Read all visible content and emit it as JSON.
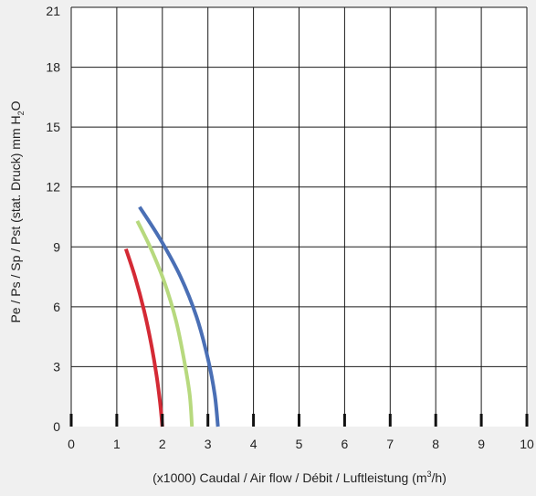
{
  "chart_data": {
    "type": "line",
    "xlabel_main": "(x1000) Caudal / Air flow / Débit / Luftleistung (m",
    "xlabel_sup": "3",
    "xlabel_end": "/h)",
    "ylabel_main": "Pe / Ps / Sp / Pst (stat. Druck) mm H",
    "ylabel_sub": "2",
    "ylabel_end": "O",
    "xlim": [
      0,
      10
    ],
    "ylim": [
      0,
      21
    ],
    "x_ticks": [
      "0",
      "1",
      "2",
      "3",
      "4",
      "5",
      "6",
      "7",
      "8",
      "9",
      "10"
    ],
    "y_ticks": [
      "0",
      "3",
      "6",
      "9",
      "12",
      "15",
      "18",
      "21"
    ],
    "grid": true,
    "series": [
      {
        "color": "#d42a35",
        "x": [
          1.2,
          1.4,
          1.6,
          1.75,
          1.87,
          1.95,
          2.0
        ],
        "y": [
          8.9,
          7.5,
          5.8,
          4.2,
          2.6,
          1.2,
          0.0
        ]
      },
      {
        "color": "#b7d97e",
        "x": [
          1.45,
          1.75,
          2.05,
          2.3,
          2.48,
          2.6,
          2.65
        ],
        "y": [
          10.3,
          8.9,
          7.2,
          5.3,
          3.3,
          1.6,
          0.0
        ]
      },
      {
        "color": "#4a6fb5",
        "x": [
          1.5,
          1.95,
          2.4,
          2.75,
          3.0,
          3.15,
          3.22
        ],
        "y": [
          11.0,
          9.4,
          7.5,
          5.5,
          3.4,
          1.6,
          0.0
        ]
      }
    ]
  }
}
